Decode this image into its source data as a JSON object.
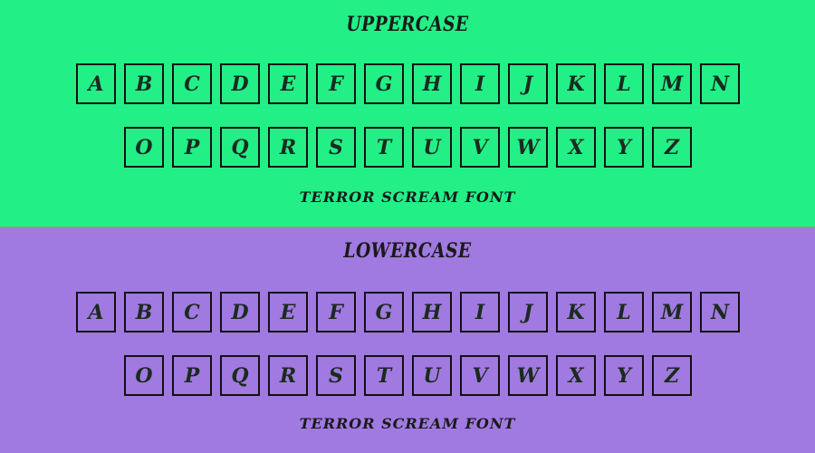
{
  "colors": {
    "upper_bg": "#22f087",
    "lower_bg": "#a07ae0",
    "ink": "#111111"
  },
  "upper": {
    "title": "UPPERCASE",
    "row1": [
      "A",
      "B",
      "C",
      "D",
      "E",
      "F",
      "G",
      "H",
      "I",
      "J",
      "K",
      "L",
      "M",
      "N"
    ],
    "row2": [
      "O",
      "P",
      "Q",
      "R",
      "S",
      "T",
      "U",
      "V",
      "W",
      "X",
      "Y",
      "Z"
    ],
    "footer": "TERROR SCREAM FONT"
  },
  "lower": {
    "title": "LOWERCASE",
    "row1": [
      "A",
      "B",
      "C",
      "D",
      "E",
      "F",
      "G",
      "H",
      "I",
      "J",
      "K",
      "L",
      "M",
      "N"
    ],
    "row2": [
      "O",
      "P",
      "Q",
      "R",
      "S",
      "T",
      "U",
      "V",
      "W",
      "X",
      "Y",
      "Z"
    ],
    "footer": "TERROR SCREAM FONT"
  }
}
